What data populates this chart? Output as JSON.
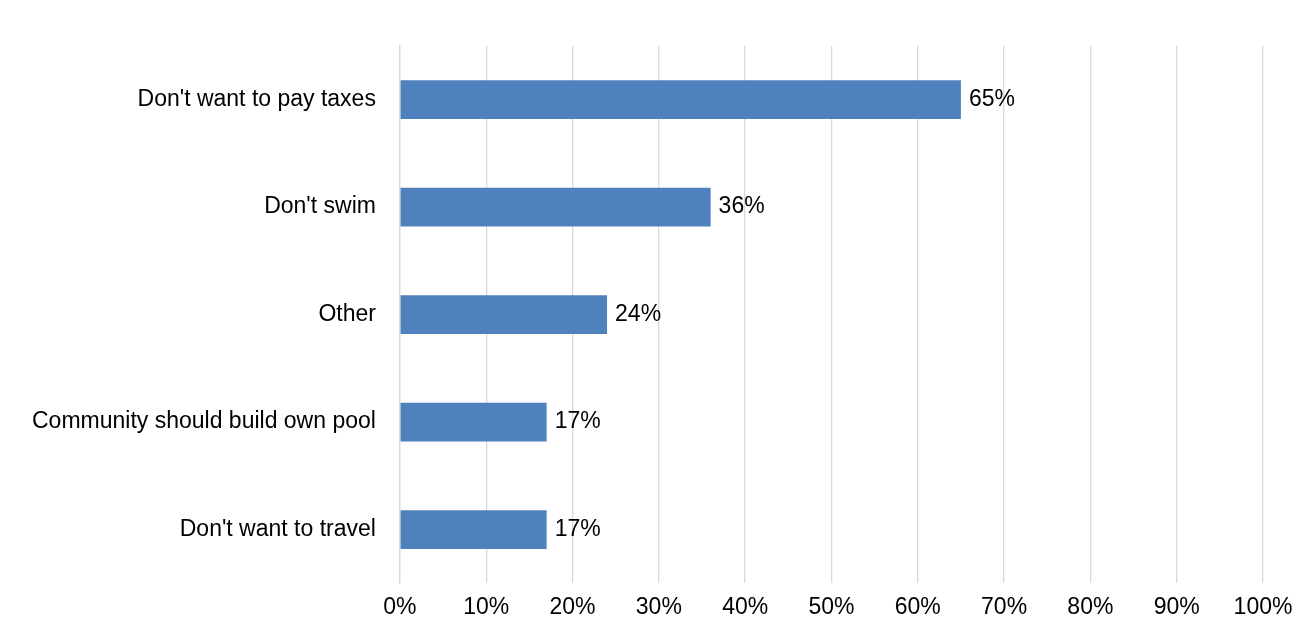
{
  "chart_data": {
    "type": "bar",
    "orientation": "horizontal",
    "categories": [
      "Don't want to pay taxes",
      "Don't swim",
      "Other",
      "Community should build own pool",
      "Don't want to travel"
    ],
    "values": [
      65,
      36,
      24,
      17,
      17
    ],
    "value_labels": [
      "65%",
      "36%",
      "24%",
      "17%",
      "17%"
    ],
    "color": "#4f81bd",
    "xlim": [
      0,
      100
    ],
    "xticks": [
      {
        "value": 0,
        "label": "0%"
      },
      {
        "value": 10,
        "label": "10%"
      },
      {
        "value": 20,
        "label": "20%"
      },
      {
        "value": 30,
        "label": "30%"
      },
      {
        "value": 40,
        "label": "40%"
      },
      {
        "value": 50,
        "label": "50%"
      },
      {
        "value": 60,
        "label": "60%"
      },
      {
        "value": 70,
        "label": "70%"
      },
      {
        "value": 80,
        "label": "80%"
      },
      {
        "value": 90,
        "label": "90%"
      },
      {
        "value": 100,
        "label": "100%"
      }
    ],
    "grid": "x",
    "legend": false
  }
}
